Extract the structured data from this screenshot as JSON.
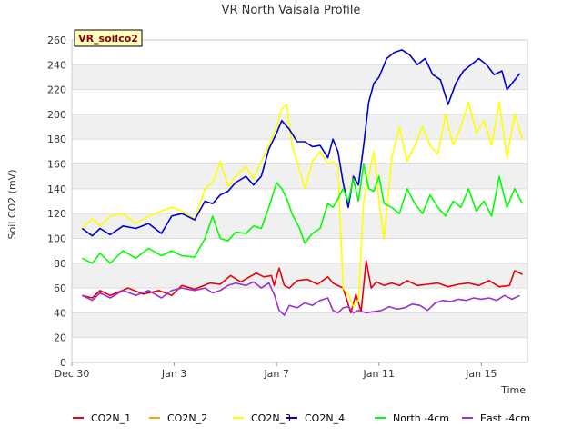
{
  "chart_data": {
    "type": "line",
    "title": "VR North Vaisala Profile",
    "badge": "VR_soilco2",
    "xlabel": "Time",
    "ylabel": "Soil CO2 (mV)",
    "xlim": [
      0,
      17.8
    ],
    "ylim": [
      0,
      260
    ],
    "yticks": [
      0,
      20,
      40,
      60,
      80,
      100,
      120,
      140,
      160,
      180,
      200,
      220,
      240,
      260
    ],
    "xticks": [
      {
        "value": 0,
        "label": "Dec 30"
      },
      {
        "value": 4,
        "label": "Jan 3"
      },
      {
        "value": 8,
        "label": "Jan 7"
      },
      {
        "value": 12,
        "label": "Jan 11"
      },
      {
        "value": 16,
        "label": "Jan 15"
      }
    ],
    "legend_position": "bottom",
    "series": [
      {
        "name": "CO2N_1",
        "color": "#e8000b",
        "points": [
          [
            0.4,
            54
          ],
          [
            0.8,
            52
          ],
          [
            1.1,
            58
          ],
          [
            1.5,
            54
          ],
          [
            2.2,
            60
          ],
          [
            2.8,
            55
          ],
          [
            3.4,
            58
          ],
          [
            3.9,
            54
          ],
          [
            4.3,
            62
          ],
          [
            4.8,
            59
          ],
          [
            5.4,
            64
          ],
          [
            5.8,
            63
          ],
          [
            6.2,
            70
          ],
          [
            6.6,
            65
          ],
          [
            7.2,
            72
          ],
          [
            7.5,
            69
          ],
          [
            7.8,
            70
          ],
          [
            7.9,
            62
          ],
          [
            8.1,
            76
          ],
          [
            8.3,
            62
          ],
          [
            8.5,
            60
          ],
          [
            8.8,
            66
          ],
          [
            9.2,
            67
          ],
          [
            9.6,
            63
          ],
          [
            10.0,
            69
          ],
          [
            10.2,
            64
          ],
          [
            10.6,
            60
          ],
          [
            10.9,
            40
          ],
          [
            11.1,
            55
          ],
          [
            11.3,
            41
          ],
          [
            11.5,
            82
          ],
          [
            11.7,
            60
          ],
          [
            11.9,
            65
          ],
          [
            12.2,
            62
          ],
          [
            12.5,
            64
          ],
          [
            12.8,
            62
          ],
          [
            13.1,
            66
          ],
          [
            13.5,
            62
          ],
          [
            13.9,
            63
          ],
          [
            14.3,
            64
          ],
          [
            14.7,
            61
          ],
          [
            15.1,
            63
          ],
          [
            15.5,
            64
          ],
          [
            15.9,
            62
          ],
          [
            16.3,
            66
          ],
          [
            16.7,
            61
          ],
          [
            17.1,
            62
          ],
          [
            17.3,
            74
          ],
          [
            17.6,
            71
          ]
        ]
      },
      {
        "name": "CO2N_2",
        "color": "#ffa500",
        "points": []
      },
      {
        "name": "CO2N_3",
        "color": "#ffff00",
        "points": [
          [
            0.4,
            108
          ],
          [
            0.8,
            116
          ],
          [
            1.1,
            110
          ],
          [
            1.5,
            118
          ],
          [
            2.0,
            120
          ],
          [
            2.5,
            112
          ],
          [
            3.0,
            118
          ],
          [
            3.5,
            122
          ],
          [
            3.9,
            125
          ],
          [
            4.3,
            122
          ],
          [
            4.8,
            115
          ],
          [
            5.2,
            140
          ],
          [
            5.5,
            145
          ],
          [
            5.8,
            162
          ],
          [
            6.1,
            142
          ],
          [
            6.4,
            150
          ],
          [
            6.8,
            158
          ],
          [
            7.1,
            148
          ],
          [
            7.4,
            162
          ],
          [
            7.7,
            175
          ],
          [
            8.0,
            190
          ],
          [
            8.2,
            205
          ],
          [
            8.4,
            208
          ],
          [
            8.6,
            175
          ],
          [
            8.9,
            155
          ],
          [
            9.1,
            140
          ],
          [
            9.4,
            162
          ],
          [
            9.7,
            170
          ],
          [
            10.0,
            160
          ],
          [
            10.2,
            162
          ],
          [
            10.4,
            158
          ],
          [
            10.6,
            60
          ],
          [
            10.8,
            55
          ],
          [
            11.0,
            45
          ],
          [
            11.2,
            50
          ],
          [
            11.4,
            130
          ],
          [
            11.6,
            152
          ],
          [
            11.8,
            170
          ],
          [
            12.0,
            130
          ],
          [
            12.2,
            100
          ],
          [
            12.5,
            165
          ],
          [
            12.8,
            190
          ],
          [
            13.1,
            162
          ],
          [
            13.4,
            175
          ],
          [
            13.7,
            190
          ],
          [
            14.0,
            175
          ],
          [
            14.3,
            168
          ],
          [
            14.6,
            200
          ],
          [
            14.9,
            175
          ],
          [
            15.2,
            190
          ],
          [
            15.5,
            210
          ],
          [
            15.8,
            185
          ],
          [
            16.1,
            195
          ],
          [
            16.4,
            175
          ],
          [
            16.7,
            210
          ],
          [
            17.0,
            165
          ],
          [
            17.3,
            200
          ],
          [
            17.6,
            180
          ]
        ]
      },
      {
        "name": "CO2N_4",
        "color": "#0000cd",
        "points": [
          [
            0.4,
            108
          ],
          [
            0.8,
            102
          ],
          [
            1.1,
            108
          ],
          [
            1.5,
            103
          ],
          [
            2.0,
            110
          ],
          [
            2.5,
            108
          ],
          [
            3.0,
            112
          ],
          [
            3.5,
            104
          ],
          [
            3.9,
            118
          ],
          [
            4.3,
            120
          ],
          [
            4.8,
            115
          ],
          [
            5.2,
            130
          ],
          [
            5.5,
            128
          ],
          [
            5.8,
            135
          ],
          [
            6.1,
            138
          ],
          [
            6.4,
            145
          ],
          [
            6.8,
            150
          ],
          [
            7.1,
            143
          ],
          [
            7.4,
            150
          ],
          [
            7.7,
            172
          ],
          [
            8.0,
            185
          ],
          [
            8.2,
            195
          ],
          [
            8.5,
            188
          ],
          [
            8.8,
            178
          ],
          [
            9.1,
            178
          ],
          [
            9.4,
            174
          ],
          [
            9.7,
            175
          ],
          [
            10.0,
            165
          ],
          [
            10.2,
            180
          ],
          [
            10.4,
            170
          ],
          [
            10.6,
            145
          ],
          [
            10.8,
            125
          ],
          [
            11.0,
            150
          ],
          [
            11.2,
            143
          ],
          [
            11.4,
            175
          ],
          [
            11.6,
            210
          ],
          [
            11.8,
            225
          ],
          [
            12.0,
            230
          ],
          [
            12.3,
            245
          ],
          [
            12.6,
            250
          ],
          [
            12.9,
            252
          ],
          [
            13.2,
            248
          ],
          [
            13.5,
            240
          ],
          [
            13.8,
            245
          ],
          [
            14.1,
            232
          ],
          [
            14.4,
            228
          ],
          [
            14.7,
            208
          ],
          [
            15.0,
            225
          ],
          [
            15.3,
            235
          ],
          [
            15.6,
            240
          ],
          [
            15.9,
            245
          ],
          [
            16.2,
            240
          ],
          [
            16.5,
            232
          ],
          [
            16.8,
            235
          ],
          [
            17.0,
            220
          ],
          [
            17.2,
            225
          ],
          [
            17.5,
            233
          ]
        ]
      },
      {
        "name": "North -4cm",
        "color": "#00ff00",
        "points": [
          [
            0.4,
            84
          ],
          [
            0.8,
            80
          ],
          [
            1.1,
            88
          ],
          [
            1.5,
            80
          ],
          [
            2.0,
            90
          ],
          [
            2.5,
            84
          ],
          [
            3.0,
            92
          ],
          [
            3.5,
            86
          ],
          [
            3.9,
            90
          ],
          [
            4.3,
            86
          ],
          [
            4.8,
            85
          ],
          [
            5.2,
            100
          ],
          [
            5.5,
            118
          ],
          [
            5.8,
            100
          ],
          [
            6.1,
            98
          ],
          [
            6.4,
            105
          ],
          [
            6.8,
            104
          ],
          [
            7.1,
            110
          ],
          [
            7.4,
            108
          ],
          [
            7.7,
            125
          ],
          [
            8.0,
            145
          ],
          [
            8.2,
            140
          ],
          [
            8.4,
            132
          ],
          [
            8.6,
            120
          ],
          [
            8.9,
            108
          ],
          [
            9.1,
            96
          ],
          [
            9.4,
            104
          ],
          [
            9.7,
            108
          ],
          [
            10.0,
            128
          ],
          [
            10.2,
            125
          ],
          [
            10.4,
            132
          ],
          [
            10.6,
            140
          ],
          [
            10.8,
            130
          ],
          [
            11.0,
            148
          ],
          [
            11.2,
            130
          ],
          [
            11.4,
            160
          ],
          [
            11.6,
            140
          ],
          [
            11.8,
            138
          ],
          [
            12.0,
            150
          ],
          [
            12.2,
            128
          ],
          [
            12.5,
            125
          ],
          [
            12.8,
            120
          ],
          [
            13.1,
            140
          ],
          [
            13.4,
            128
          ],
          [
            13.7,
            120
          ],
          [
            14.0,
            135
          ],
          [
            14.3,
            125
          ],
          [
            14.6,
            118
          ],
          [
            14.9,
            130
          ],
          [
            15.2,
            125
          ],
          [
            15.5,
            140
          ],
          [
            15.8,
            122
          ],
          [
            16.1,
            130
          ],
          [
            16.4,
            118
          ],
          [
            16.7,
            150
          ],
          [
            17.0,
            125
          ],
          [
            17.3,
            140
          ],
          [
            17.6,
            128
          ]
        ]
      },
      {
        "name": "East -4cm",
        "color": "#9932cc",
        "points": [
          [
            0.4,
            54
          ],
          [
            0.8,
            50
          ],
          [
            1.1,
            56
          ],
          [
            1.5,
            52
          ],
          [
            2.0,
            58
          ],
          [
            2.5,
            54
          ],
          [
            3.0,
            58
          ],
          [
            3.5,
            52
          ],
          [
            3.9,
            58
          ],
          [
            4.3,
            60
          ],
          [
            4.8,
            58
          ],
          [
            5.2,
            60
          ],
          [
            5.5,
            56
          ],
          [
            5.8,
            58
          ],
          [
            6.1,
            62
          ],
          [
            6.4,
            64
          ],
          [
            6.8,
            62
          ],
          [
            7.1,
            65
          ],
          [
            7.4,
            60
          ],
          [
            7.7,
            64
          ],
          [
            7.9,
            55
          ],
          [
            8.1,
            42
          ],
          [
            8.3,
            38
          ],
          [
            8.5,
            46
          ],
          [
            8.8,
            44
          ],
          [
            9.1,
            48
          ],
          [
            9.4,
            46
          ],
          [
            9.7,
            50
          ],
          [
            10.0,
            52
          ],
          [
            10.2,
            42
          ],
          [
            10.4,
            40
          ],
          [
            10.6,
            44
          ],
          [
            10.8,
            45
          ],
          [
            11.0,
            40
          ],
          [
            11.2,
            42
          ],
          [
            11.5,
            40
          ],
          [
            11.8,
            41
          ],
          [
            12.1,
            42
          ],
          [
            12.4,
            45
          ],
          [
            12.7,
            43
          ],
          [
            13.0,
            44
          ],
          [
            13.3,
            47
          ],
          [
            13.6,
            46
          ],
          [
            13.9,
            42
          ],
          [
            14.2,
            48
          ],
          [
            14.5,
            50
          ],
          [
            14.8,
            49
          ],
          [
            15.1,
            51
          ],
          [
            15.4,
            50
          ],
          [
            15.7,
            52
          ],
          [
            16.0,
            51
          ],
          [
            16.3,
            52
          ],
          [
            16.6,
            50
          ],
          [
            16.9,
            54
          ],
          [
            17.2,
            51
          ],
          [
            17.5,
            54
          ]
        ]
      }
    ]
  }
}
